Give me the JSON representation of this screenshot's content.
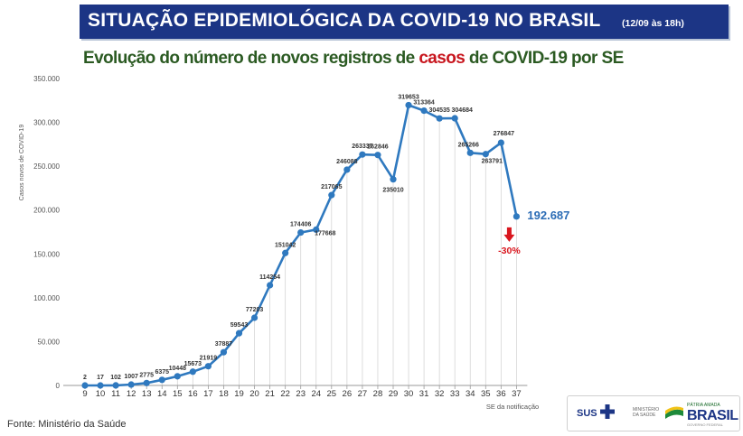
{
  "header": {
    "title": "SITUAÇÃO EPIDEMIOLÓGICA DA COVID-19 NO BRASIL",
    "date": "(12/09 às 18h)"
  },
  "subtitle": {
    "part1": "Evolução do número de novos registros de ",
    "highlight": "casos",
    "part2": " de COVID-19 por SE"
  },
  "chart_data": {
    "type": "line",
    "ylabel": "Casos novos de COVID-19",
    "xlabel": "SE da notificação",
    "ylim": [
      0,
      350000
    ],
    "yticks": [
      "0",
      "50.000",
      "100.000",
      "150.000",
      "200.000",
      "250.000",
      "300.000",
      "350.000"
    ],
    "categories": [
      "9",
      "10",
      "11",
      "12",
      "13",
      "14",
      "15",
      "16",
      "17",
      "18",
      "19",
      "20",
      "21",
      "22",
      "23",
      "24",
      "25",
      "26",
      "27",
      "28",
      "29",
      "30",
      "31",
      "32",
      "33",
      "34",
      "35",
      "36",
      "37"
    ],
    "values": [
      2,
      17,
      102,
      1007,
      2775,
      6375,
      10448,
      15673,
      21919,
      37887,
      59543,
      77203,
      114254,
      151042,
      174406,
      177668,
      217065,
      246088,
      263337,
      262846,
      235010,
      319653,
      313364,
      304535,
      304684,
      265266,
      263791,
      276847,
      192687
    ],
    "point_labels": [
      "2",
      "17",
      "102",
      "1007",
      "2775",
      "6375",
      "10448",
      "15673",
      "21919",
      "37887",
      "59543",
      "77203",
      "114254",
      "151042",
      "174406",
      "177668",
      "217065",
      "246088",
      "263337",
      "262846",
      "235010",
      "319653",
      "313364",
      "304535",
      "304684",
      "265266",
      "263791",
      "276847",
      ""
    ],
    "last_value_label": "192.687",
    "change_label": "-30%",
    "line_color": "#2f79bf",
    "accent_red": "#d9161e",
    "grid": false
  },
  "footer": {
    "source": "Fonte: Ministério da Saúde"
  },
  "logos": {
    "sus": "SUS",
    "ministerio": "MINISTÉRIO DA SAÚDE",
    "patria": "PÁTRIA AMADA",
    "brasil": "BRASIL",
    "governo": "GOVERNO FEDERAL"
  }
}
